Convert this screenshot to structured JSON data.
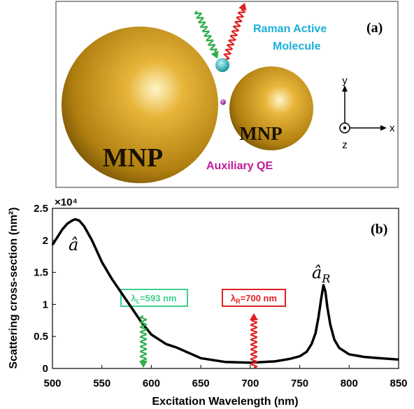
{
  "diagram": {
    "label": "(a)",
    "molecule_label": [
      "Raman Active",
      "Molecule"
    ],
    "mnp_labels": [
      "MNP",
      "MNP"
    ],
    "qe_label": "Auxiliary QE",
    "axes": {
      "x": "x",
      "y": "y",
      "z": "z"
    }
  },
  "chart_data": {
    "type": "line",
    "panel_label": "(b)",
    "x_label": "Excitation Wavelength (nm)",
    "y_label": "Scattering cross-section (nm²)",
    "y_multiplier": "×10⁴",
    "xlim": [
      500,
      850
    ],
    "xticks": [
      500,
      550,
      600,
      650,
      700,
      750,
      800,
      850
    ],
    "ylim": [
      0,
      2.5
    ],
    "yticks": [
      0,
      0.5,
      1,
      1.5,
      2,
      2.5
    ],
    "x": [
      500,
      505,
      510,
      515,
      520,
      523,
      527,
      532,
      540,
      550,
      560,
      575,
      590,
      600,
      615,
      625,
      650,
      675,
      700,
      725,
      740,
      750,
      757,
      762,
      766,
      769,
      772,
      774,
      776,
      778,
      781,
      785,
      790,
      800,
      815,
      830,
      850
    ],
    "series": [
      {
        "color": "#000000",
        "values": [
          1.93,
          2.05,
          2.17,
          2.26,
          2.31,
          2.33,
          2.31,
          2.22,
          2.0,
          1.66,
          1.4,
          1.06,
          0.72,
          0.53,
          0.38,
          0.33,
          0.16,
          0.1,
          0.09,
          0.11,
          0.15,
          0.19,
          0.26,
          0.38,
          0.55,
          0.8,
          1.12,
          1.3,
          1.2,
          0.95,
          0.68,
          0.45,
          0.32,
          0.22,
          0.18,
          0.16,
          0.14
        ]
      }
    ],
    "annotations": {
      "a_hat": "â",
      "a_hat_r": {
        "symbol": "â",
        "sub": "R"
      },
      "lambda_l": {
        "symbol": "λ",
        "sub": "L",
        "text": "=593 nm"
      },
      "lambda_r": {
        "symbol": "λ",
        "sub": "R",
        "text": "=700 nm"
      }
    }
  }
}
